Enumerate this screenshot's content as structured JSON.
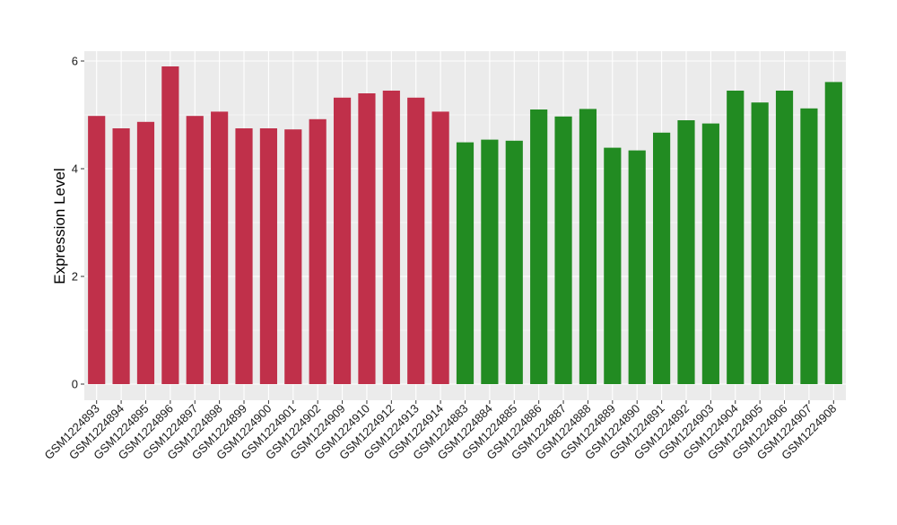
{
  "chart_data": {
    "type": "bar",
    "title": "",
    "xlabel": "",
    "ylabel": "Expression Level",
    "ylim": [
      0,
      6.0
    ],
    "yticks": [
      0,
      2,
      4,
      6
    ],
    "grid": true,
    "colors": {
      "group_1": "#c0304a",
      "group_2": "#228b22",
      "panel_background": "#ebebeb",
      "grid_major": "#ffffff"
    },
    "categories": [
      "GSM1224893",
      "GSM1224894",
      "GSM1224895",
      "GSM1224896",
      "GSM1224897",
      "GSM1224898",
      "GSM1224899",
      "GSM1224900",
      "GSM1224901",
      "GSM1224902",
      "GSM1224909",
      "GSM1224910",
      "GSM1224912",
      "GSM1224913",
      "GSM1224914",
      "GSM1224883",
      "GSM1224884",
      "GSM1224885",
      "GSM1224886",
      "GSM1224887",
      "GSM1224888",
      "GSM1224889",
      "GSM1224890",
      "GSM1224891",
      "GSM1224892",
      "GSM1224903",
      "GSM1224904",
      "GSM1224905",
      "GSM1224906",
      "GSM1224907",
      "GSM1224908"
    ],
    "values": [
      4.98,
      4.75,
      4.87,
      5.9,
      4.98,
      5.06,
      4.75,
      4.75,
      4.73,
      4.92,
      5.32,
      5.4,
      5.45,
      5.32,
      5.06,
      4.49,
      4.54,
      4.52,
      5.1,
      4.97,
      5.11,
      4.39,
      4.34,
      4.67,
      4.9,
      4.84,
      5.45,
      5.23,
      5.45,
      5.12,
      5.61
    ],
    "bar_colors": [
      "#c0304a",
      "#c0304a",
      "#c0304a",
      "#c0304a",
      "#c0304a",
      "#c0304a",
      "#c0304a",
      "#c0304a",
      "#c0304a",
      "#c0304a",
      "#c0304a",
      "#c0304a",
      "#c0304a",
      "#c0304a",
      "#c0304a",
      "#228b22",
      "#228b22",
      "#228b22",
      "#228b22",
      "#228b22",
      "#228b22",
      "#228b22",
      "#228b22",
      "#228b22",
      "#228b22",
      "#228b22",
      "#228b22",
      "#228b22",
      "#228b22",
      "#228b22",
      "#228b22"
    ]
  }
}
